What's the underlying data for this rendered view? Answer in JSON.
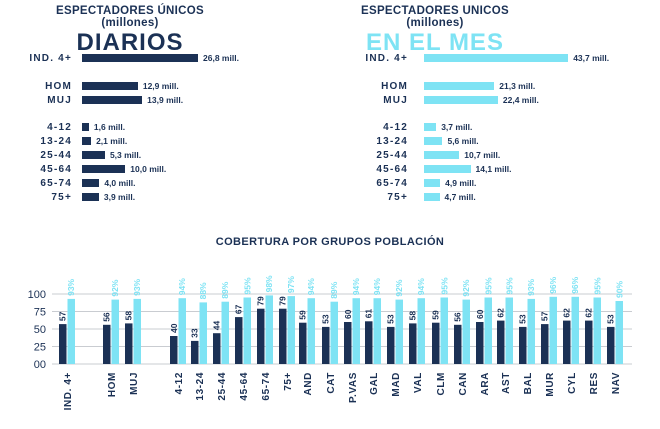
{
  "colors": {
    "dark": "#1b3155",
    "light": "#7ee3f4",
    "grid": "#c9ccd1"
  },
  "left_panel": {
    "title_line1": "ESPECTADORES ÚNICOS",
    "title_line2": "(millones)",
    "big_title": "DIARIOS",
    "rows": [
      {
        "label": "IND. 4+",
        "value": 26.8,
        "text": "26,8 mill."
      },
      {
        "label": "HOM",
        "value": 12.9,
        "text": "12,9 mill."
      },
      {
        "label": "MUJ",
        "value": 13.9,
        "text": "13,9 mill."
      },
      {
        "label": "4-12",
        "value": 1.6,
        "text": "1,6 mill."
      },
      {
        "label": "13-24",
        "value": 2.1,
        "text": "2,1 mill."
      },
      {
        "label": "25-44",
        "value": 5.3,
        "text": "5,3 mill."
      },
      {
        "label": "45-64",
        "value": 10.0,
        "text": "10,0 mill."
      },
      {
        "label": "65-74",
        "value": 4.0,
        "text": "4,0 mill."
      },
      {
        "label": "75+",
        "value": 3.9,
        "text": "3,9 mill."
      }
    ]
  },
  "right_panel": {
    "title_line1": "ESPECTADORES UNICOS",
    "title_line2": "(millones)",
    "big_title": "EN EL MES",
    "rows": [
      {
        "label": "IND. 4+",
        "value": 43.7,
        "text": "43,7 mill."
      },
      {
        "label": "HOM",
        "value": 21.3,
        "text": "21,3 mill."
      },
      {
        "label": "MUJ",
        "value": 22.4,
        "text": "22,4 mill."
      },
      {
        "label": "4-12",
        "value": 3.7,
        "text": "3,7 mill."
      },
      {
        "label": "13-24",
        "value": 5.6,
        "text": "5,6 mill."
      },
      {
        "label": "25-44",
        "value": 10.7,
        "text": "10,7 mill."
      },
      {
        "label": "45-64",
        "value": 14.1,
        "text": "14,1 mill."
      },
      {
        "label": "65-74",
        "value": 4.9,
        "text": "4,9 mill."
      },
      {
        "label": "75+",
        "value": 4.7,
        "text": "4,7 mill."
      }
    ]
  },
  "chart_data": {
    "type": "bar",
    "title": "COBERTURA POR GRUPOS POBLACIÓN",
    "ylim": [
      0,
      100
    ],
    "y_ticks": [
      "00",
      "25",
      "50",
      "75",
      "100"
    ],
    "categories": [
      "IND. 4+",
      "HOM",
      "MUJ",
      "4-12",
      "13-24",
      "25-44",
      "45-64",
      "65-74",
      "75+",
      "AND",
      "CAT",
      "P.VAS",
      "GAL",
      "MAD",
      "VAL",
      "CLM",
      "CAN",
      "ARA",
      "AST",
      "BAL",
      "MUR",
      "CYL",
      "RES",
      "NAV"
    ],
    "series": [
      {
        "values": [
          57,
          56,
          58,
          40,
          33,
          44,
          67,
          79,
          79,
          59,
          53,
          60,
          61,
          53,
          58,
          59,
          56,
          60,
          62,
          53,
          57,
          62,
          62,
          53
        ],
        "labels": [
          "57",
          "56",
          "58",
          "40",
          "33",
          "44",
          "67",
          "79",
          "79",
          "59",
          "53",
          "60",
          "61",
          "53",
          "58",
          "59",
          "56",
          "60",
          "62",
          "53",
          "57",
          "62",
          "62",
          "53"
        ]
      },
      {
        "values": [
          93,
          92,
          93,
          94,
          88,
          89,
          95,
          98,
          97,
          94,
          89,
          94,
          94,
          92,
          94,
          95,
          92,
          95,
          95,
          93,
          96,
          96,
          95,
          90
        ],
        "labels": [
          "93%",
          "92%",
          "93%",
          "94%",
          "88%",
          "89%",
          "95%",
          "98%",
          "97%",
          "94%",
          "89%",
          "94%",
          "94%",
          "92%",
          "94%",
          "95%",
          "92%",
          "95%",
          "95%",
          "93%",
          "96%",
          "96%",
          "95%",
          "90%"
        ]
      }
    ],
    "grid": true
  }
}
